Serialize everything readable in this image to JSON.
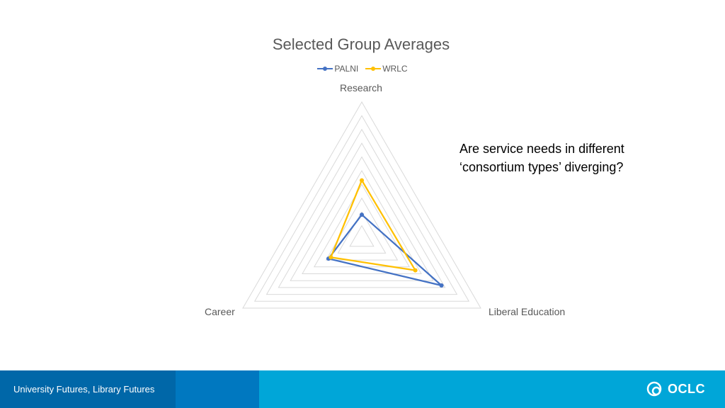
{
  "chart_data": {
    "type": "radar",
    "title": "Selected Group Averages",
    "axes": [
      "Research",
      "Liberal Education",
      "Career"
    ],
    "rlim": [
      0,
      1
    ],
    "grid": true,
    "legend_position": "top",
    "series": [
      {
        "name": "PALNI",
        "color": "#4472c4",
        "values": [
          0.18,
          0.67,
          0.28
        ]
      },
      {
        "name": "WRLC",
        "color": "#ffc000",
        "values": [
          0.43,
          0.45,
          0.26
        ]
      }
    ]
  },
  "side_text": "Are service needs in different ‘consortium types’ diverging?",
  "footer": {
    "text": "University Futures, Library Futures",
    "logo_text": "OCLC",
    "colors": [
      "#0067a8",
      "#0078c0",
      "#00a6d8"
    ]
  }
}
